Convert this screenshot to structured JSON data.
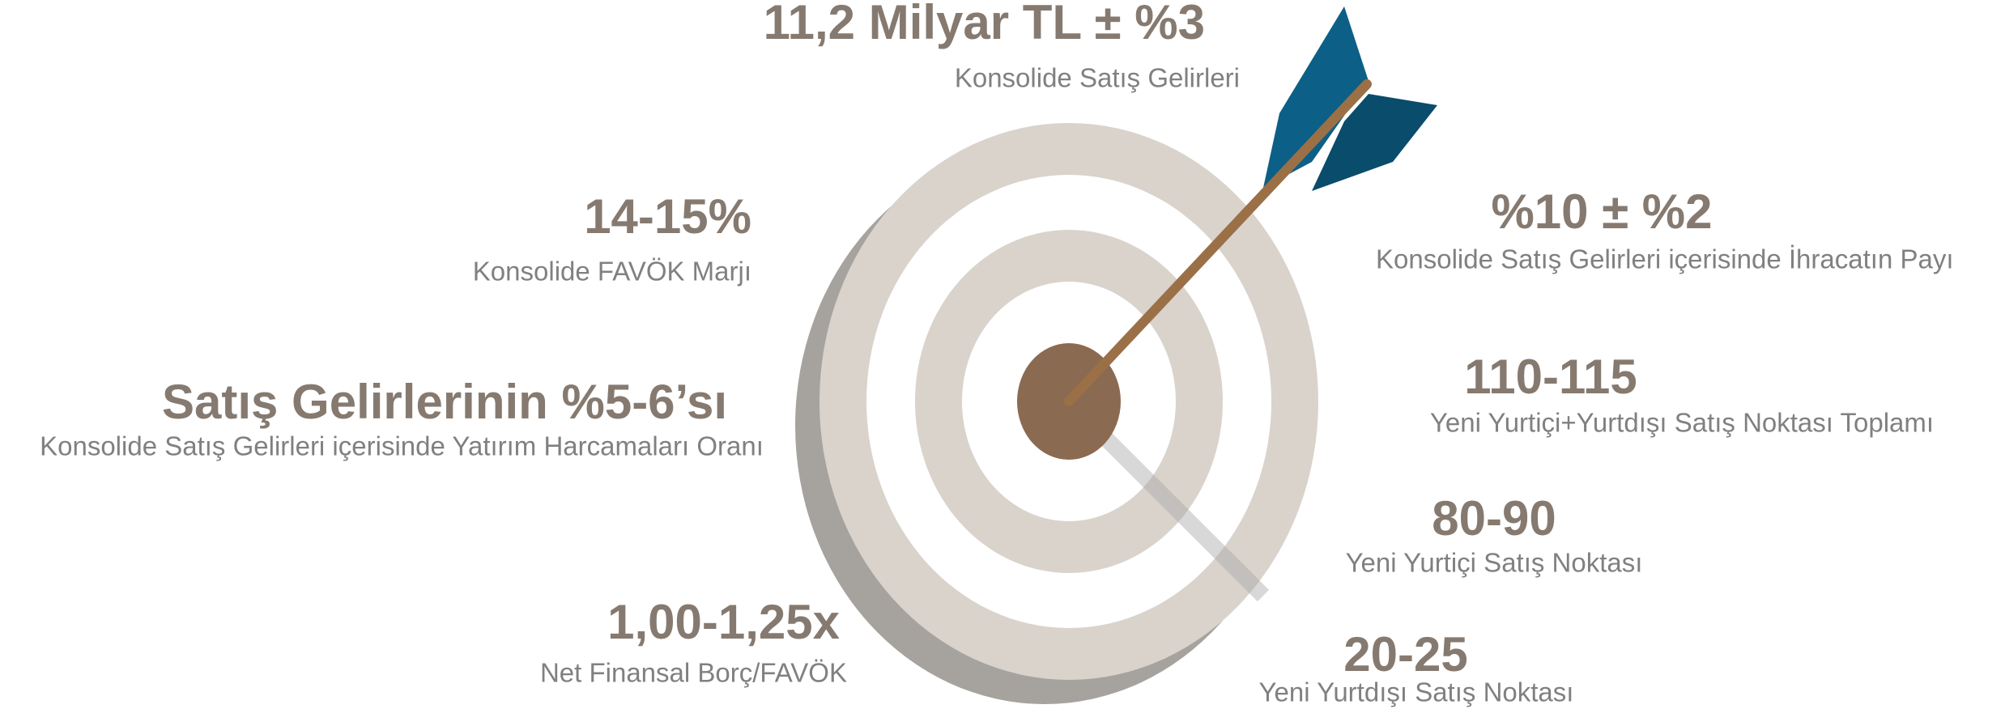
{
  "targets": [
    {
      "value": "11,2 Milyar TL ± %3",
      "label": "Konsolide Satış Gelirleri"
    },
    {
      "value": "14-15%",
      "label": "Konsolide FAVÖK Marjı"
    },
    {
      "value": "Satış Gelirlerinin %5-6’sı",
      "label": "Konsolide Satış Gelirleri içerisinde Yatırım Harcamaları Oranı"
    },
    {
      "value": "1,00-1,25x",
      "label": "Net Finansal Borç/FAVÖK"
    },
    {
      "value": "%10 ± %2",
      "label": "Konsolide Satış Gelirleri içerisinde İhracatın Payı"
    },
    {
      "value": "110-115",
      "label": "Yeni Yurtiçi+Yurtdışı Satış Noktası Toplamı"
    },
    {
      "value": "80-90",
      "label": "Yeni Yurtiçi Satış Noktası"
    },
    {
      "value": "20-25",
      "label": "Yeni Yurtdışı Satış Noktası"
    }
  ]
}
